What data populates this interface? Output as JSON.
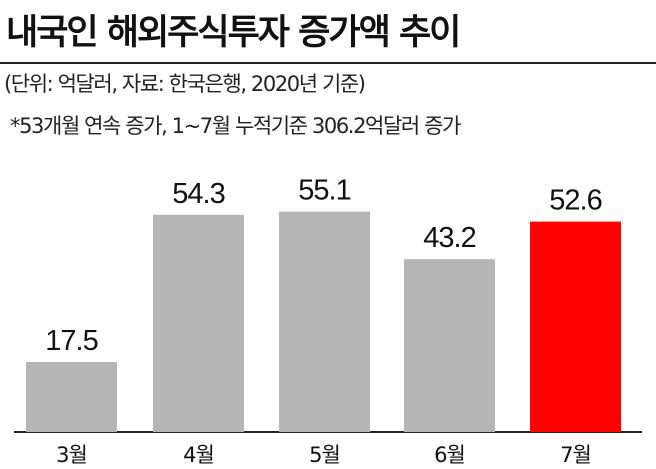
{
  "title": "내국인 해외주식투자 증가액 추이",
  "subtitle": "(단위: 억달러, 자료: 한국은행, 2020년 기준)",
  "note": "*53개월 연속 증가, 1~7월 누적기준 306.2억달러 증가",
  "chart_data": {
    "type": "bar",
    "categories": [
      "3월",
      "4월",
      "5월",
      "6월",
      "7월"
    ],
    "values": [
      17.5,
      54.3,
      55.1,
      43.2,
      52.6
    ],
    "data_labels": [
      "17.5",
      "54.3",
      "55.1",
      "43.2",
      "52.6"
    ],
    "bar_color": "#b5b5b5",
    "highlight_color": "#ff0000",
    "highlight_category": "7월",
    "ylim": [
      0,
      60
    ],
    "grid": false,
    "legend": "none"
  }
}
